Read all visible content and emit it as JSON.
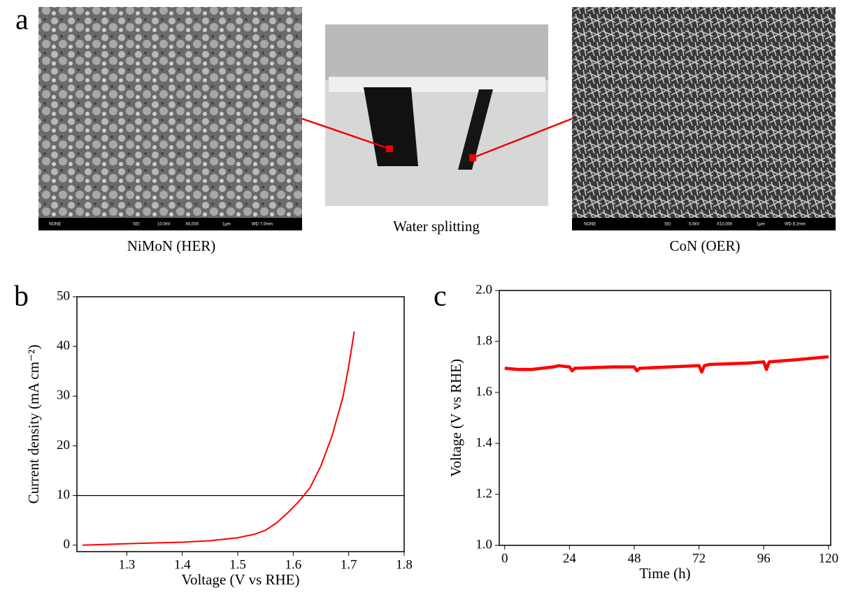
{
  "panels": {
    "a": "a",
    "b": "b",
    "c": "c"
  },
  "images": [
    {
      "caption": "NiMoN (HER)",
      "info": [
        "NONE",
        "SEI",
        "10.0kV",
        "X6,000",
        "1μm",
        "WD 7.0mm"
      ]
    },
    {
      "caption": "Water splitting"
    },
    {
      "caption": "CoN (OER)",
      "info": [
        "NONE",
        "SEI",
        "5.0kV",
        "X10,000",
        "1μm",
        "WD 8.2mm"
      ]
    }
  ],
  "chart_data": [
    {
      "type": "line",
      "x_label": "Voltage (V vs RHE)",
      "y_label": "Current density (mA cm⁻²)",
      "x": [
        1.22,
        1.3,
        1.4,
        1.45,
        1.5,
        1.53,
        1.55,
        1.57,
        1.59,
        1.61,
        1.63,
        1.65,
        1.67,
        1.69,
        1.7,
        1.71
      ],
      "values": [
        0,
        0.3,
        0.6,
        0.9,
        1.5,
        2.2,
        3,
        4.5,
        6.5,
        8.8,
        11.5,
        16,
        22,
        30,
        36,
        43
      ],
      "color": "#ff0000",
      "hline": 10,
      "xlim": [
        1.21,
        1.8
      ],
      "xticks": [
        1.3,
        1.4,
        1.5,
        1.6,
        1.7,
        1.8
      ],
      "ylim": [
        -1.3,
        50
      ],
      "yticks": [
        0,
        10,
        20,
        30,
        40,
        50
      ]
    },
    {
      "type": "line",
      "x_label": "Time (h)",
      "y_label": "Voltage (V vs RHE)",
      "x": [
        0,
        5,
        10,
        18,
        20,
        24,
        25,
        26,
        40,
        48,
        49,
        50,
        72,
        73,
        74,
        76,
        90,
        96,
        97,
        98,
        110,
        120
      ],
      "values": [
        1.695,
        1.69,
        1.69,
        1.7,
        1.705,
        1.7,
        1.685,
        1.695,
        1.7,
        1.7,
        1.685,
        1.695,
        1.705,
        1.68,
        1.705,
        1.71,
        1.715,
        1.72,
        1.69,
        1.72,
        1.73,
        1.74
      ],
      "color": "#ff0000",
      "xlim": [
        -2,
        120.8
      ],
      "xticks": [
        0,
        24,
        48,
        72,
        96,
        120
      ],
      "ylim": [
        1.0,
        2.0
      ],
      "yticks": [
        {
          "value": 1.0,
          "label": "1.0"
        },
        1.2,
        1.4,
        1.6,
        1.8,
        {
          "value": 2.0,
          "label": "2.0"
        }
      ]
    }
  ]
}
